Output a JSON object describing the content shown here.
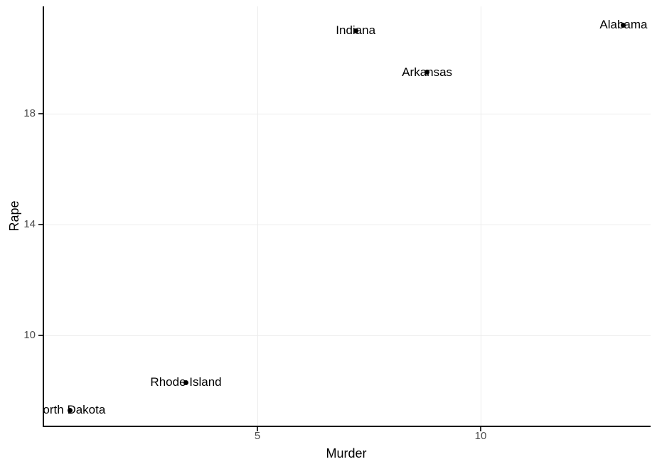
{
  "chart_data": {
    "type": "scatter",
    "title": "",
    "xlabel": "Murder",
    "ylabel": "Rape",
    "x_ticks": [
      5,
      10
    ],
    "y_ticks": [
      10,
      14,
      18
    ],
    "x_range": [
      0.2,
      13.8
    ],
    "y_range": [
      6.7,
      21.9
    ],
    "grid": "major-only",
    "legend": "none",
    "points": [
      {
        "label": "Alabama",
        "murder": 13.2,
        "rape": 21.2
      },
      {
        "label": "Indiana",
        "murder": 7.2,
        "rape": 21.0
      },
      {
        "label": "Arkansas",
        "murder": 8.8,
        "rape": 19.5
      },
      {
        "label": "Rhode Island",
        "murder": 3.4,
        "rape": 8.3
      },
      {
        "label": "North Dakota",
        "murder": 0.8,
        "rape": 7.3
      }
    ],
    "colors": {
      "background": "#ffffff",
      "point": "#000000",
      "point_label": "#000000",
      "axis_line": "#000000",
      "tick_label": "#4d4d4d",
      "axis_title": "#000000",
      "gridline": "#ececec"
    }
  }
}
